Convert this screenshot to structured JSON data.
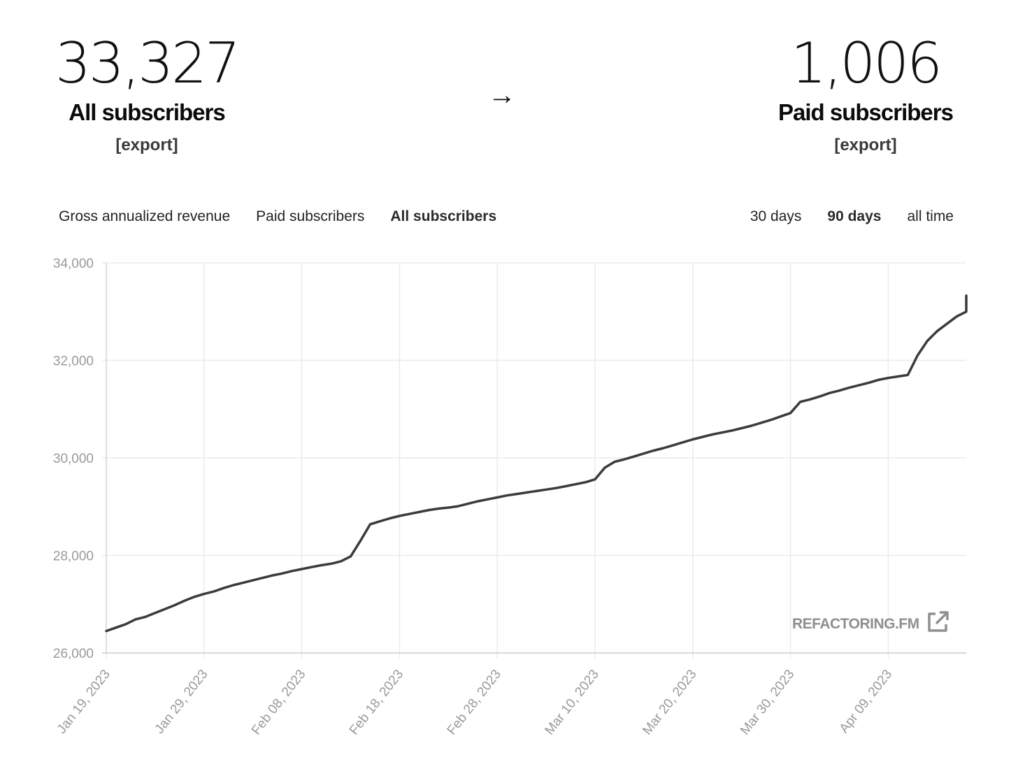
{
  "stats": {
    "all": {
      "value": "33,327",
      "label": "All subscribers",
      "export": "[export]"
    },
    "paid": {
      "value": "1,006",
      "label": "Paid subscribers",
      "export": "[export]"
    },
    "arrow": "→"
  },
  "tabs": [
    {
      "label": "Gross annualized revenue",
      "active": false
    },
    {
      "label": "Paid subscribers",
      "active": false
    },
    {
      "label": "All subscribers",
      "active": true
    }
  ],
  "ranges": [
    {
      "label": "30 days",
      "active": false
    },
    {
      "label": "90 days",
      "active": true
    },
    {
      "label": "all time",
      "active": false
    }
  ],
  "watermark": {
    "text": "REFACTORING.FM",
    "icon": "external-link-icon"
  },
  "colors": {
    "line": "#3b3b3b",
    "grid": "#ebebeb",
    "tick_text": "#9a9a9a"
  },
  "chart_data": {
    "type": "line",
    "title": "",
    "xlabel": "",
    "ylabel": "",
    "ylim": [
      26000,
      34000
    ],
    "yticks": [
      "26,000",
      "28,000",
      "30,000",
      "32,000",
      "34,000"
    ],
    "ytick_values": [
      26000,
      28000,
      30000,
      32000,
      34000
    ],
    "xticks": [
      "Jan 19, 2023",
      "Jan 29, 2023",
      "Feb 08, 2023",
      "Feb 18, 2023",
      "Feb 28, 2023",
      "Mar 10, 2023",
      "Mar 20, 2023",
      "Mar 30, 2023",
      "Apr 09, 2023"
    ],
    "grid": true,
    "series": [
      {
        "x_start": "Jan 19, 2023",
        "x_end": "Apr 17, 2023",
        "values": [
          26450,
          26520,
          26590,
          26690,
          26740,
          26820,
          26900,
          26980,
          27070,
          27150,
          27210,
          27260,
          27330,
          27390,
          27440,
          27490,
          27540,
          27590,
          27630,
          27680,
          27720,
          27760,
          27800,
          27830,
          27880,
          27980,
          28300,
          28640,
          28700,
          28760,
          28810,
          28850,
          28890,
          28930,
          28960,
          28980,
          29010,
          29060,
          29110,
          29150,
          29190,
          29230,
          29260,
          29290,
          29320,
          29350,
          29380,
          29420,
          29460,
          29500,
          29560,
          29800,
          29920,
          29970,
          30030,
          30090,
          30150,
          30200,
          30260,
          30320,
          30380,
          30430,
          30480,
          30520,
          30560,
          30610,
          30660,
          30720,
          30780,
          30850,
          30920,
          31150,
          31200,
          31260,
          31330,
          31380,
          31440,
          31490,
          31540,
          31600,
          31640,
          31670,
          31700,
          32100,
          32400,
          32600,
          32750,
          32900,
          33000,
          33080,
          33160,
          33300,
          33327
        ]
      }
    ]
  }
}
